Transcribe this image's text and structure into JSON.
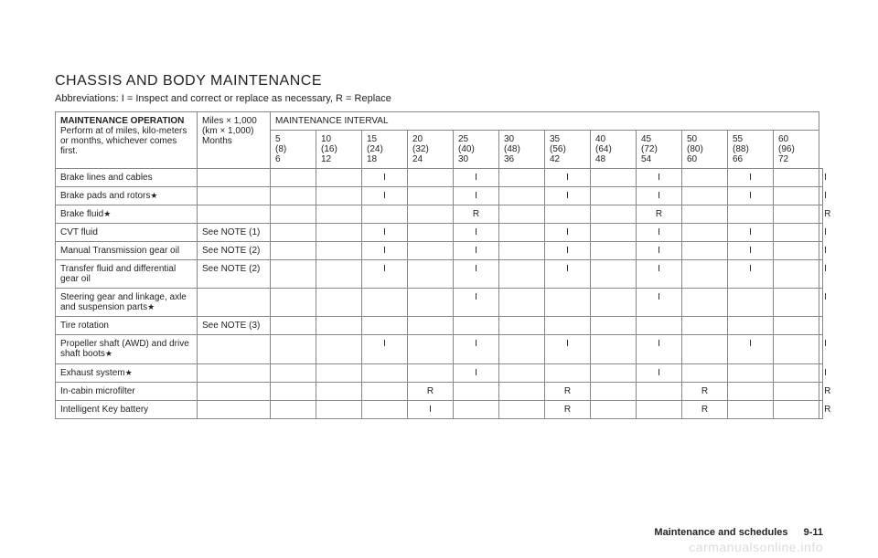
{
  "title": "CHASSIS AND BODY MAINTENANCE",
  "subtitle": "Abbreviations: I = Inspect and correct or replace as necessary, R = Replace",
  "header": {
    "op_label_bold": "MAINTENANCE OPERATION",
    "op_label_rest": "Perform at of miles, kilo-meters or months, whichever comes first.",
    "unit_line1": "Miles × 1,000",
    "unit_line2": "(km × 1,000)",
    "unit_line3": "Months",
    "interval_label": "MAINTENANCE INTERVAL",
    "intervals": [
      {
        "mi": "5",
        "km": "(8)",
        "mo": "6"
      },
      {
        "mi": "10",
        "km": "(16)",
        "mo": "12"
      },
      {
        "mi": "15",
        "km": "(24)",
        "mo": "18"
      },
      {
        "mi": "20",
        "km": "(32)",
        "mo": "24"
      },
      {
        "mi": "25",
        "km": "(40)",
        "mo": "30"
      },
      {
        "mi": "30",
        "km": "(48)",
        "mo": "36"
      },
      {
        "mi": "35",
        "km": "(56)",
        "mo": "42"
      },
      {
        "mi": "40",
        "km": "(64)",
        "mo": "48"
      },
      {
        "mi": "45",
        "km": "(72)",
        "mo": "54"
      },
      {
        "mi": "50",
        "km": "(80)",
        "mo": "60"
      },
      {
        "mi": "55",
        "km": "(88)",
        "mo": "66"
      },
      {
        "mi": "60",
        "km": "(96)",
        "mo": "72"
      }
    ]
  },
  "rows": [
    {
      "name": "Brake lines and cables",
      "star": false,
      "note": "",
      "cells": [
        "",
        "",
        "I",
        "",
        "I",
        "",
        "I",
        "",
        "I",
        "",
        "I",
        "",
        "I"
      ],
      "note_in_first": false
    },
    {
      "name": "Brake pads and rotors",
      "star": true,
      "note": "",
      "cells": [
        "",
        "",
        "I",
        "",
        "I",
        "",
        "I",
        "",
        "I",
        "",
        "I",
        "",
        "I"
      ],
      "note_in_first": false
    },
    {
      "name": "Brake fluid",
      "star": true,
      "note": "",
      "cells": [
        "",
        "",
        "",
        "",
        "R",
        "",
        "",
        "",
        "R",
        "",
        "",
        "",
        "R"
      ],
      "note_in_first": false
    },
    {
      "name": "CVT fluid",
      "star": false,
      "note": "See NOTE (1)",
      "cells": [
        "",
        "",
        "I",
        "",
        "I",
        "",
        "I",
        "",
        "I",
        "",
        "I",
        "",
        "I"
      ],
      "note_in_first": false
    },
    {
      "name": "Manual Transmission gear oil",
      "star": false,
      "note": "See NOTE (2)",
      "cells": [
        "",
        "",
        "I",
        "",
        "I",
        "",
        "I",
        "",
        "I",
        "",
        "I",
        "",
        "I"
      ],
      "note_in_first": false
    },
    {
      "name": "Transfer fluid and differential gear oil",
      "star": false,
      "note": "See NOTE (2)",
      "cells": [
        "",
        "",
        "I",
        "",
        "I",
        "",
        "I",
        "",
        "I",
        "",
        "I",
        "",
        "I"
      ],
      "note_in_first": false
    },
    {
      "name": "Steering gear and linkage, axle and suspension parts",
      "star": true,
      "note": "",
      "cells": [
        "",
        "",
        "",
        "",
        "I",
        "",
        "",
        "",
        "I",
        "",
        "",
        "",
        "I"
      ],
      "note_in_first": false
    },
    {
      "name": "Tire rotation",
      "star": false,
      "note": "See NOTE (3)",
      "cells": [
        "",
        "",
        "",
        "",
        "",
        "",
        "",
        "",
        "",
        "",
        "",
        "",
        ""
      ],
      "note_in_first": false
    },
    {
      "name": "Propeller shaft (AWD) and drive shaft boots",
      "star": true,
      "note": "",
      "cells": [
        "",
        "",
        "I",
        "",
        "I",
        "",
        "I",
        "",
        "I",
        "",
        "I",
        "",
        "I"
      ],
      "note_in_first": false
    },
    {
      "name": "Exhaust system",
      "star": true,
      "note": "",
      "cells": [
        "",
        "",
        "",
        "",
        "I",
        "",
        "",
        "",
        "I",
        "",
        "",
        "",
        "I"
      ],
      "note_in_first": false
    },
    {
      "name": "In-cabin microfilter",
      "star": false,
      "note": "",
      "cells": [
        "",
        "",
        "",
        "R",
        "",
        "",
        "R",
        "",
        "",
        "R",
        "",
        "",
        "R"
      ],
      "note_in_first": false
    },
    {
      "name": "Intelligent Key battery",
      "star": false,
      "note": "",
      "cells": [
        "",
        "",
        "",
        "I",
        "",
        "",
        "R",
        "",
        "",
        "R",
        "",
        "",
        "R"
      ],
      "note_in_first": false
    }
  ],
  "footer_label": "Maintenance and schedules",
  "footer_page": "9-11",
  "watermark": "carmanualsonline.info"
}
